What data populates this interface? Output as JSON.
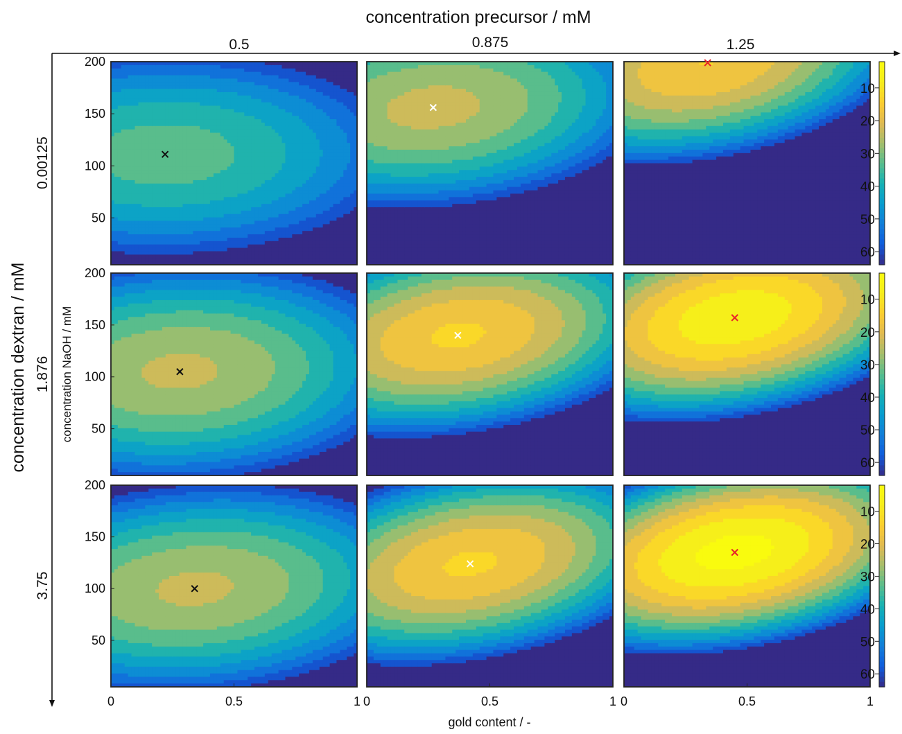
{
  "chart_data": {
    "type": "contour",
    "title": "",
    "outer_x_label": "concentration precursor / mM",
    "outer_y_label": "concentration dextran / mM",
    "xlabel": "gold content / -",
    "ylabel": "concentration NaOH / mM",
    "columns": [
      "0.5",
      "0.875",
      "1.25"
    ],
    "rows": [
      "0.00125",
      "1.876",
      "3.75"
    ],
    "x_ticks": [
      "0",
      "0.5",
      "1"
    ],
    "x_tick_values": [
      0,
      0.5,
      1
    ],
    "y_ticks": [
      "50",
      "100",
      "150",
      "200"
    ],
    "y_tick_values": [
      50,
      100,
      150,
      200
    ],
    "xlim": [
      0,
      1
    ],
    "ylim": [
      5,
      200
    ],
    "colorbar_ticks": [
      "10",
      "20",
      "30",
      "40",
      "50",
      "60"
    ],
    "colorbar_tick_values": [
      10,
      20,
      30,
      40,
      50,
      60
    ],
    "colorbar_range": [
      2,
      64
    ],
    "colormap": "parula",
    "panels": [
      {
        "row": 0,
        "col": 0,
        "optimum": {
          "x": 0.22,
          "y": 111
        },
        "marker_color": "#111111"
      },
      {
        "row": 0,
        "col": 1,
        "optimum": {
          "x": 0.27,
          "y": 156
        },
        "marker_color": "#ffffff"
      },
      {
        "row": 0,
        "col": 2,
        "optimum": {
          "x": 0.34,
          "y": 199
        },
        "marker_color": "#e8242a"
      },
      {
        "row": 1,
        "col": 0,
        "optimum": {
          "x": 0.28,
          "y": 105
        },
        "marker_color": "#111111"
      },
      {
        "row": 1,
        "col": 1,
        "optimum": {
          "x": 0.37,
          "y": 140
        },
        "marker_color": "#ffffff"
      },
      {
        "row": 1,
        "col": 2,
        "optimum": {
          "x": 0.45,
          "y": 157
        },
        "marker_color": "#e8242a"
      },
      {
        "row": 2,
        "col": 0,
        "optimum": {
          "x": 0.34,
          "y": 100
        },
        "marker_color": "#111111"
      },
      {
        "row": 2,
        "col": 1,
        "optimum": {
          "x": 0.42,
          "y": 124
        },
        "marker_color": "#ffffff"
      },
      {
        "row": 2,
        "col": 2,
        "optimum": {
          "x": 0.45,
          "y": 135
        },
        "marker_color": "#e8242a"
      }
    ]
  }
}
